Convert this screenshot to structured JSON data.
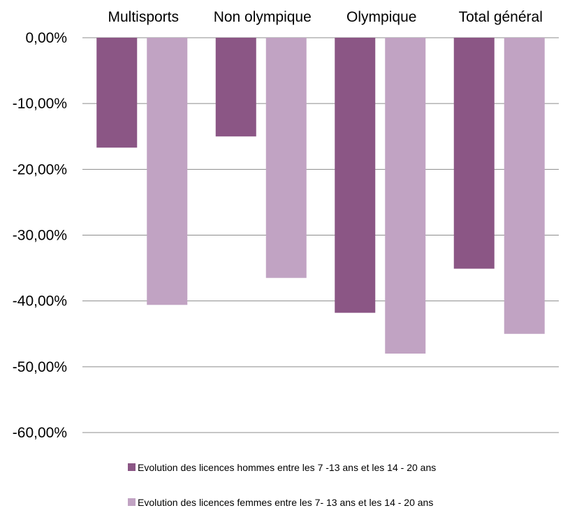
{
  "chart_data": {
    "type": "bar",
    "categories": [
      "Multisports",
      "Non olympique",
      "Olympique",
      "Total général"
    ],
    "series": [
      {
        "name": "Evolution des licences hommes entre les 7 -13 ans et les 14 - 20 ans",
        "values": [
          -16.7,
          -15.0,
          -41.8,
          -35.1
        ],
        "color": "#8b5685"
      },
      {
        "name": "Evolution des licences femmes entre les 7- 13 ans et les 14 - 20 ans",
        "values": [
          -40.6,
          -36.5,
          -48.0,
          -45.0
        ],
        "color": "#c1a3c3"
      }
    ],
    "yticks": [
      "0,00%",
      "-10,00%",
      "-20,00%",
      "-30,00%",
      "-40,00%",
      "-50,00%",
      "-60,00%"
    ],
    "ylim": [
      -60,
      0
    ],
    "category_axis_position": "top",
    "grid": true,
    "legend_position": "bottom"
  }
}
